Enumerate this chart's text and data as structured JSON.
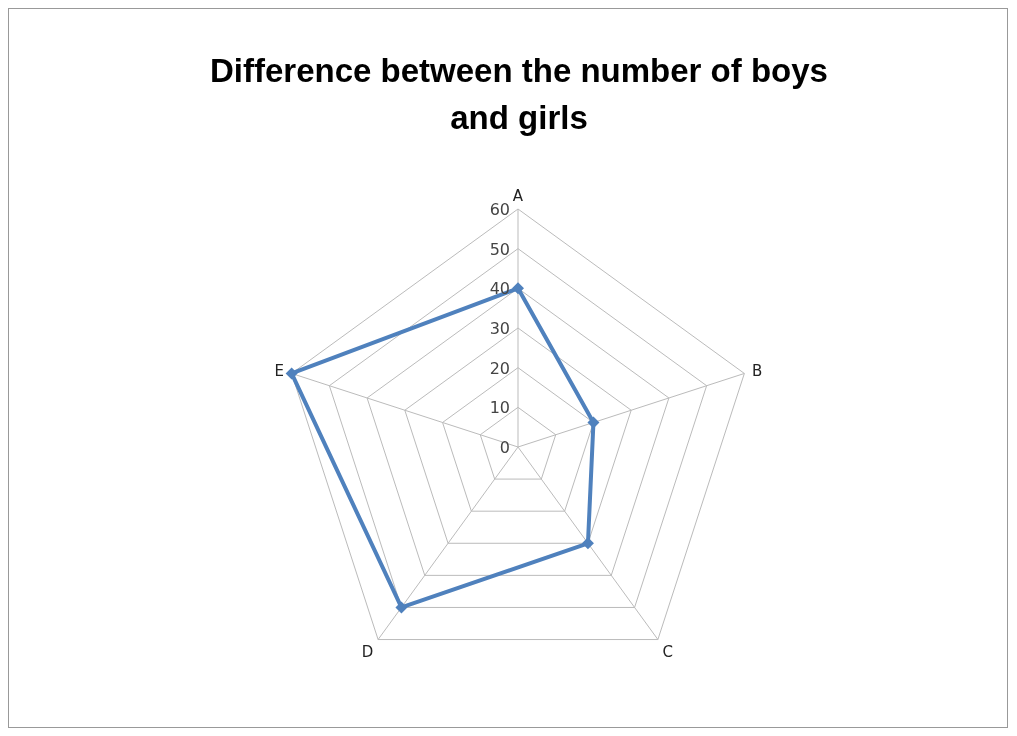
{
  "chart_data": {
    "type": "radar",
    "title": "Difference between the number of boys and girls",
    "categories": [
      "A",
      "B",
      "C",
      "D",
      "E"
    ],
    "series": [
      {
        "color": "#4f81bd",
        "values": [
          40,
          20,
          30,
          50,
          60
        ]
      }
    ],
    "ylim": [
      0,
      60
    ],
    "yticks": [
      0,
      10,
      20,
      30,
      40,
      50,
      60
    ],
    "grid": true,
    "marker": "diamond",
    "legend": false
  }
}
